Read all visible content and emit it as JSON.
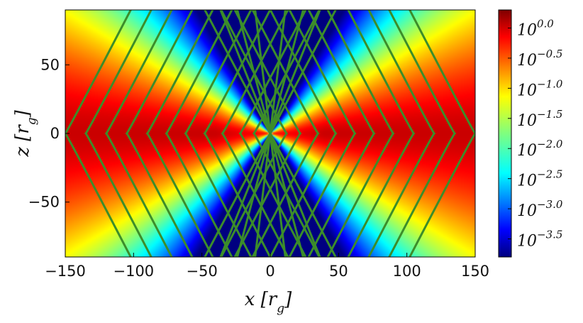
{
  "chart_data": {
    "type": "heatmap",
    "title": "",
    "xlabel": "x [r_g]",
    "ylabel": "z [r_g]",
    "xlim": [
      -150,
      150
    ],
    "ylim": [
      -90,
      90
    ],
    "x_ticks": [
      -150,
      -100,
      -50,
      0,
      50,
      100,
      150
    ],
    "x_tick_labels": [
      "−150",
      "−100",
      "−50",
      "0",
      "50",
      "100",
      "150"
    ],
    "y_ticks": [
      -50,
      0,
      50
    ],
    "y_tick_labels": [
      "−50",
      "0",
      "50"
    ],
    "colorbar": {
      "scale": "log",
      "range_log10": [
        -3.8,
        0.3
      ],
      "ticks_log10": [
        0.0,
        -0.5,
        -1.0,
        -1.5,
        -2.0,
        -2.5,
        -3.0,
        -3.5
      ],
      "tick_labels": [
        "10^0.0",
        "10^−0.5",
        "10^−1.0",
        "10^−1.5",
        "10^−2.0",
        "10^−2.5",
        "10^−3.0",
        "10^−3.5"
      ],
      "colormap": "jet"
    },
    "density_field": {
      "description": "log10 density peaks at equator and falls off with polar angle",
      "equator_log10": 0.0,
      "funnel_log10": -3.8,
      "cone_half_opening_deg": 60
    },
    "contour_lines": {
      "color": "#3c8d2a",
      "ray_angles_deg": [
        7,
        15,
        22,
        28
      ],
      "cusp_points_x": [
        12,
        22,
        35,
        48,
        62,
        76,
        90,
        105,
        120,
        135,
        150
      ]
    }
  },
  "colors": {
    "background": "#ffffff",
    "funnel": "#00007f",
    "contour": "#3c8d2a"
  }
}
